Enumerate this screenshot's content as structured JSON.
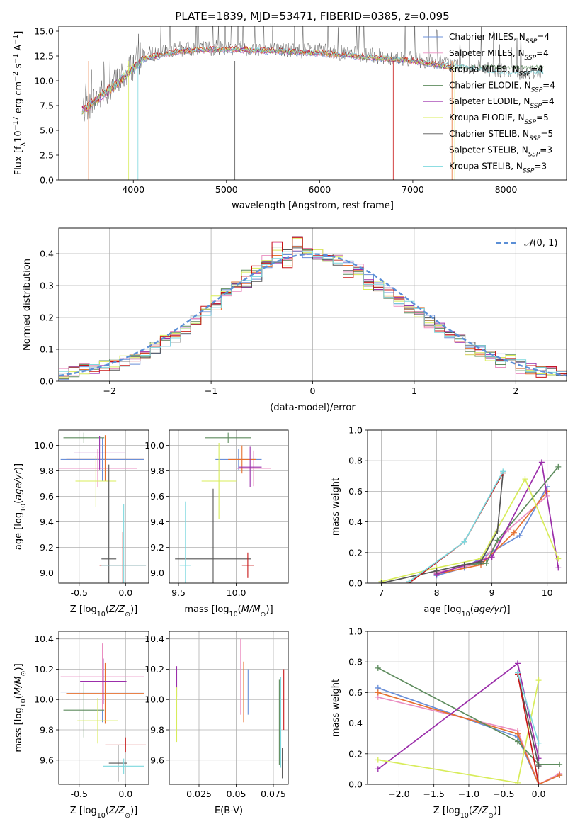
{
  "figure": {
    "title": "PLATE=1839, MJD=53471, FIBERID=0385, z=0.095"
  },
  "colors": [
    "#6a8fd8",
    "#ea8dc0",
    "#e6702e",
    "#5e8c5e",
    "#9b2eaa",
    "#d8ec5a",
    "#555555",
    "#c81616",
    "#7dd8de"
  ],
  "legend_spectrum": [
    "Chabrier MILES, N$_{SSP}$=4",
    "Salpeter MILES, N$_{SSP}$=4",
    "Kroupa MILES, N$_{SSP}$=4",
    "Chabrier ELODIE, N$_{SSP}$=4",
    "Salpeter ELODIE, N$_{SSP}$=4",
    "Kroupa ELODIE, N$_{SSP}$=5",
    "Chabrier STELIB, N$_{SSP}$=5",
    "Salpeter STELIB, N$_{SSP}$=3",
    "Kroupa STELIB, N$_{SSP}$=3"
  ],
  "chart_data": [
    {
      "type": "line",
      "panel": "spectrum",
      "title": "PLATE=1839, MJD=53471, FIBERID=0385, z=0.095",
      "xlabel": "wavelength [Angstrom, rest frame]",
      "ylabel": "Flux [f$_\\lambda$10$^{-17}$ erg cm$^{-2}$ s$^{-1}$ A$^{-1}$]",
      "xlim": [
        3200,
        8650
      ],
      "ylim": [
        0,
        15.5
      ],
      "xticks": [
        4000,
        5000,
        6000,
        7000,
        8000
      ],
      "yticks": [
        0.0,
        2.5,
        5.0,
        7.5,
        10.0,
        12.5,
        15.0
      ],
      "series": [
        {
          "name": "Chabrier MILES, N$_{SSP}$=4",
          "x": [
            3450,
            3800,
            4100,
            4500,
            5000,
            5500,
            6000,
            6500,
            7000,
            7400
          ],
          "y": [
            7.0,
            9.5,
            12.2,
            13.0,
            13.2,
            13.0,
            12.8,
            12.4,
            12.0,
            11.4
          ]
        },
        {
          "name": "Chabrier STELIB, N$_{SSP}$=5",
          "x": [
            3450,
            3800,
            4100,
            4500,
            5000,
            5500,
            6000,
            6500,
            7000,
            7500,
            8000,
            8400
          ],
          "y": [
            7.0,
            9.6,
            12.5,
            13.1,
            13.3,
            13.1,
            12.9,
            12.5,
            12.1,
            11.5,
            10.8,
            10.8
          ]
        },
        {
          "name": "Kroupa STELIB, N$_{SSP}$=3",
          "x": [
            3450,
            3800,
            4100,
            4500,
            5000,
            5500,
            6000,
            6500,
            7000,
            7500,
            8000,
            8400
          ],
          "y": [
            6.8,
            9.4,
            12.0,
            12.9,
            13.1,
            12.9,
            12.7,
            12.3,
            11.9,
            11.3,
            10.6,
            10.7
          ]
        }
      ]
    },
    {
      "type": "histogram",
      "panel": "residuals",
      "xlabel": "(data-model)/error",
      "ylabel": "Normed distribution",
      "xlim": [
        -2.5,
        2.5
      ],
      "ylim": [
        0,
        0.48
      ],
      "xticks": [
        -2,
        -1,
        0,
        1,
        2
      ],
      "yticks": [
        0.0,
        0.1,
        0.2,
        0.3,
        0.4
      ],
      "legend": [
        "$\\mathcal{N}(0,1)$"
      ],
      "bin_edges": [
        -2.5,
        -2.4,
        -2.3,
        -2.2,
        -2.1,
        -2.0,
        -1.9,
        -1.8,
        -1.7,
        -1.6,
        -1.5,
        -1.4,
        -1.3,
        -1.2,
        -1.1,
        -1.0,
        -0.9,
        -0.8,
        -0.7,
        -0.6,
        -0.5,
        -0.4,
        -0.3,
        -0.2,
        -0.1,
        0.0,
        0.1,
        0.2,
        0.3,
        0.4,
        0.5,
        0.6,
        0.7,
        0.8,
        0.9,
        1.0,
        1.1,
        1.2,
        1.3,
        1.4,
        1.5,
        1.6,
        1.7,
        1.8,
        1.9,
        2.0,
        2.1,
        2.2,
        2.3,
        2.4,
        2.5
      ],
      "series": [
        {
          "name": "Chabrier MILES, N$_{SSP}$=4",
          "values": [
            0.02,
            0.03,
            0.035,
            0.04,
            0.05,
            0.05,
            0.06,
            0.07,
            0.09,
            0.1,
            0.12,
            0.14,
            0.16,
            0.19,
            0.21,
            0.24,
            0.27,
            0.3,
            0.31,
            0.33,
            0.36,
            0.38,
            0.4,
            0.41,
            0.4,
            0.39,
            0.39,
            0.38,
            0.36,
            0.34,
            0.32,
            0.3,
            0.28,
            0.26,
            0.24,
            0.22,
            0.19,
            0.17,
            0.15,
            0.13,
            0.12,
            0.1,
            0.08,
            0.07,
            0.06,
            0.05,
            0.04,
            0.035,
            0.03,
            0.02
          ]
        },
        {
          "name": "Kroupa ELODIE, N$_{SSP}$=5",
          "values": [
            0.025,
            0.03,
            0.04,
            0.045,
            0.05,
            0.055,
            0.065,
            0.08,
            0.085,
            0.11,
            0.13,
            0.15,
            0.17,
            0.18,
            0.22,
            0.25,
            0.28,
            0.29,
            0.34,
            0.35,
            0.38,
            0.42,
            0.37,
            0.44,
            0.42,
            0.4,
            0.38,
            0.4,
            0.33,
            0.35,
            0.3,
            0.31,
            0.27,
            0.25,
            0.23,
            0.2,
            0.18,
            0.16,
            0.14,
            0.14,
            0.1,
            0.09,
            0.08,
            0.06,
            0.07,
            0.04,
            0.04,
            0.03,
            0.035,
            0.02
          ]
        },
        {
          "name": "$\\mathcal{N}(0,1)$",
          "x": [
            -2.5,
            -2.0,
            -1.5,
            -1.0,
            -0.5,
            0.0,
            0.5,
            1.0,
            1.5,
            2.0,
            2.5
          ],
          "y": [
            0.018,
            0.054,
            0.13,
            0.242,
            0.352,
            0.399,
            0.352,
            0.242,
            0.13,
            0.054,
            0.018
          ]
        }
      ]
    },
    {
      "type": "scatter",
      "panel": "age-vs-Z",
      "xlabel": "Z [log$_{10}$($Z/Z_\\odot$)]",
      "ylabel": "age  [log$_{10}$($age/yr$)]",
      "xlim": [
        -0.72,
        0.25
      ],
      "ylim": [
        8.92,
        10.12
      ],
      "xticks": [
        -0.5,
        0.0
      ],
      "yticks": [
        9.0,
        9.2,
        9.4,
        9.6,
        9.8,
        10.0
      ],
      "points": [
        {
          "x": -0.25,
          "y": 9.89,
          "xerr": 0.45,
          "yerr": 0.17
        },
        {
          "x": -0.3,
          "y": 9.82,
          "xerr": 0.42,
          "yerr": 0.15
        },
        {
          "x": -0.22,
          "y": 9.9,
          "xerr": 0.42,
          "yerr": 0.18
        },
        {
          "x": -0.45,
          "y": 10.06,
          "xerr": 0.22,
          "yerr": 0.04
        },
        {
          "x": -0.28,
          "y": 9.94,
          "xerr": 0.28,
          "yerr": 0.13
        },
        {
          "x": -0.32,
          "y": 9.72,
          "xerr": 0.22,
          "yerr": 0.2
        },
        {
          "x": -0.18,
          "y": 9.11,
          "xerr": 0.08,
          "yerr": 0.74
        },
        {
          "x": -0.03,
          "y": 9.06,
          "xerr": 0.25,
          "yerr": 0.26
        },
        {
          "x": -0.02,
          "y": 9.06,
          "xerr": 0.24,
          "yerr": 0.48
        }
      ]
    },
    {
      "type": "scatter",
      "panel": "age-vs-mass",
      "xlabel": "mass [log$_{10}$($M/M_\\odot$)]",
      "xlim": [
        9.42,
        10.45
      ],
      "ylim": [
        8.92,
        10.12
      ],
      "xticks": [
        9.5,
        10.0
      ],
      "yticks": [
        9.0,
        9.2,
        9.4,
        9.6,
        9.8,
        10.0
      ],
      "points": [
        {
          "x": 10.02,
          "y": 9.89,
          "xerr": 0.2,
          "yerr": 0.08
        },
        {
          "x": 10.15,
          "y": 9.82,
          "xerr": 0.15,
          "yerr": 0.14
        },
        {
          "x": 10.05,
          "y": 9.89,
          "xerr": 0.12,
          "yerr": 0.11
        },
        {
          "x": 9.93,
          "y": 10.06,
          "xerr": 0.2,
          "yerr": 0.04
        },
        {
          "x": 10.12,
          "y": 9.83,
          "xerr": 0.1,
          "yerr": 0.16
        },
        {
          "x": 9.85,
          "y": 9.72,
          "xerr": 0.15,
          "yerr": 0.3
        },
        {
          "x": 9.8,
          "y": 9.11,
          "xerr": 0.33,
          "yerr": 0.55
        },
        {
          "x": 10.1,
          "y": 9.06,
          "xerr": 0.05,
          "yerr": 0.1
        },
        {
          "x": 9.56,
          "y": 9.06,
          "xerr": 0.05,
          "yerr": 0.5
        }
      ]
    },
    {
      "type": "line",
      "panel": "mass-weight-vs-age",
      "xlabel": "age  [log$_{10}$($age/yr$)]",
      "ylabel": "mass weight",
      "xlim": [
        6.75,
        10.35
      ],
      "ylim": [
        0,
        1
      ],
      "xticks": [
        7,
        8,
        9,
        10
      ],
      "yticks": [
        0.0,
        0.2,
        0.4,
        0.6,
        0.8,
        1.0
      ],
      "series": [
        {
          "name": "Chabrier MILES, N$_{SSP}$=4",
          "x": [
            8.0,
            8.5,
            9.5,
            10.0
          ],
          "y": [
            0.05,
            0.1,
            0.31,
            0.63
          ]
        },
        {
          "name": "Salpeter MILES, N$_{SSP}$=4",
          "x": [
            8.0,
            8.8,
            9.3,
            10.0
          ],
          "y": [
            0.07,
            0.13,
            0.35,
            0.57
          ]
        },
        {
          "name": "Kroupa MILES, N$_{SSP}$=4",
          "x": [
            8.0,
            8.8,
            9.4,
            10.0
          ],
          "y": [
            0.06,
            0.12,
            0.33,
            0.6
          ]
        },
        {
          "name": "Chabrier ELODIE, N$_{SSP}$=4",
          "x": [
            8.5,
            8.9,
            9.1,
            10.2
          ],
          "y": [
            0.12,
            0.13,
            0.28,
            0.76
          ]
        },
        {
          "name": "Salpeter ELODIE, N$_{SSP}$=4",
          "x": [
            8.0,
            9.0,
            9.9,
            10.2
          ],
          "y": [
            0.06,
            0.17,
            0.79,
            0.1
          ]
        },
        {
          "name": "Kroupa ELODIE, N$_{SSP}$=5",
          "x": [
            7.0,
            8.0,
            8.8,
            9.6,
            10.2
          ],
          "y": [
            0.01,
            0.1,
            0.16,
            0.68,
            0.16
          ]
        },
        {
          "name": "Chabrier STELIB, N$_{SSP}$=5",
          "x": [
            7.0,
            8.0,
            8.5,
            8.8,
            9.1,
            9.2
          ],
          "y": [
            0.0,
            0.08,
            0.12,
            0.14,
            0.34,
            0.72
          ]
        },
        {
          "name": "Salpeter STELIB, N$_{SSP}$=3",
          "x": [
            7.5,
            8.5,
            9.2
          ],
          "y": [
            0.0,
            0.27,
            0.72
          ]
        },
        {
          "name": "Kroupa STELIB, N$_{SSP}$=3",
          "x": [
            7.5,
            8.5,
            9.2
          ],
          "y": [
            0.01,
            0.27,
            0.73
          ]
        }
      ]
    },
    {
      "type": "scatter",
      "panel": "mass-vs-Z",
      "xlabel": "Z [log$_{10}$($Z/Z_\\odot$)]",
      "ylabel": "mass [log$_{10}$($M/M_\\odot$)]",
      "xlim": [
        -0.72,
        0.25
      ],
      "ylim": [
        9.44,
        10.45
      ],
      "xticks": [
        -0.5,
        0.0
      ],
      "yticks": [
        9.6,
        9.8,
        10.0,
        10.2,
        10.4
      ],
      "points": [
        {
          "x": -0.25,
          "y": 10.05,
          "xerr": 0.45,
          "yerr": 0.2
        },
        {
          "x": -0.25,
          "y": 10.15,
          "xerr": 0.45,
          "yerr": 0.22
        },
        {
          "x": -0.22,
          "y": 10.04,
          "xerr": 0.42,
          "yerr": 0.2
        },
        {
          "x": -0.45,
          "y": 9.93,
          "xerr": 0.22,
          "yerr": 0.18
        },
        {
          "x": -0.24,
          "y": 10.12,
          "xerr": 0.25,
          "yerr": 0.15
        },
        {
          "x": -0.3,
          "y": 9.86,
          "xerr": 0.22,
          "yerr": 0.15
        },
        {
          "x": -0.08,
          "y": 9.58,
          "xerr": 0.1,
          "yerr": 0.12
        },
        {
          "x": 0.0,
          "y": 9.7,
          "xerr": 0.22,
          "yerr": 0.05
        },
        {
          "x": -0.02,
          "y": 9.56,
          "xerr": 0.22,
          "yerr": 0.05
        }
      ]
    },
    {
      "type": "scatter",
      "panel": "mass-vs-EBV",
      "xlabel": "E(B-V)",
      "xlim": [
        0.005,
        0.085
      ],
      "ylim": [
        9.44,
        10.45
      ],
      "xticks": [
        0.025,
        0.05,
        0.075
      ],
      "yticks": [
        9.6,
        9.8,
        10.0,
        10.2,
        10.4
      ],
      "points": [
        {
          "x": 0.058,
          "y": 10.05,
          "yerr": 0.15
        },
        {
          "x": 0.053,
          "y": 10.15,
          "yerr": 0.25
        },
        {
          "x": 0.055,
          "y": 10.05,
          "yerr": 0.2
        },
        {
          "x": 0.079,
          "y": 9.85,
          "yerr": 0.28
        },
        {
          "x": 0.01,
          "y": 10.12,
          "yerr": 0.1
        },
        {
          "x": 0.01,
          "y": 9.9,
          "yerr": 0.18
        },
        {
          "x": 0.081,
          "y": 9.58,
          "yerr": 0.1
        },
        {
          "x": 0.082,
          "y": 10.0,
          "yerr": 0.2
        },
        {
          "x": 0.08,
          "y": 9.85,
          "yerr": 0.3
        }
      ]
    },
    {
      "type": "line",
      "panel": "mass-weight-vs-Z",
      "xlabel": "Z [log$_{10}$($Z/Z_\\odot$)]",
      "ylabel": "mass weight",
      "xlim": [
        -2.45,
        0.4
      ],
      "ylim": [
        0,
        1
      ],
      "xticks": [
        -2.0,
        -1.5,
        -1.0,
        -0.5,
        0.0
      ],
      "yticks": [
        0.0,
        0.2,
        0.4,
        0.6,
        0.8,
        1.0
      ],
      "series": [
        {
          "name": "Chabrier MILES, N$_{SSP}$=4",
          "x": [
            -2.3,
            -0.3,
            0.0,
            0.3
          ],
          "y": [
            0.63,
            0.31,
            0.0,
            0.06
          ]
        },
        {
          "name": "Salpeter MILES, N$_{SSP}$=4",
          "x": [
            -2.3,
            -0.3,
            0.0,
            0.3
          ],
          "y": [
            0.57,
            0.35,
            0.0,
            0.07
          ]
        },
        {
          "name": "Kroupa MILES, N$_{SSP}$=4",
          "x": [
            -2.3,
            -0.3,
            0.0,
            0.3
          ],
          "y": [
            0.6,
            0.33,
            0.0,
            0.06
          ]
        },
        {
          "name": "Chabrier ELODIE, N$_{SSP}$=4",
          "x": [
            -2.3,
            -0.3,
            0.0,
            0.3
          ],
          "y": [
            0.76,
            0.28,
            0.13,
            0.13
          ]
        },
        {
          "name": "Salpeter ELODIE, N$_{SSP}$=4",
          "x": [
            -2.3,
            -0.3,
            0.0
          ],
          "y": [
            0.1,
            0.79,
            0.17
          ]
        },
        {
          "name": "Kroupa ELODIE, N$_{SSP}$=5",
          "x": [
            -2.3,
            -0.3,
            0.0
          ],
          "y": [
            0.16,
            0.01,
            0.68
          ]
        },
        {
          "name": "Chabrier STELIB, N$_{SSP}$=5",
          "x": [
            -0.3,
            0.0
          ],
          "y": [
            0.72,
            0.12
          ]
        },
        {
          "name": "Salpeter STELIB, N$_{SSP}$=3",
          "x": [
            -0.3,
            0.0
          ],
          "y": [
            0.72,
            0.0
          ]
        },
        {
          "name": "Kroupa STELIB, N$_{SSP}$=3",
          "x": [
            -0.3,
            0.0
          ],
          "y": [
            0.73,
            0.27
          ]
        }
      ]
    }
  ]
}
